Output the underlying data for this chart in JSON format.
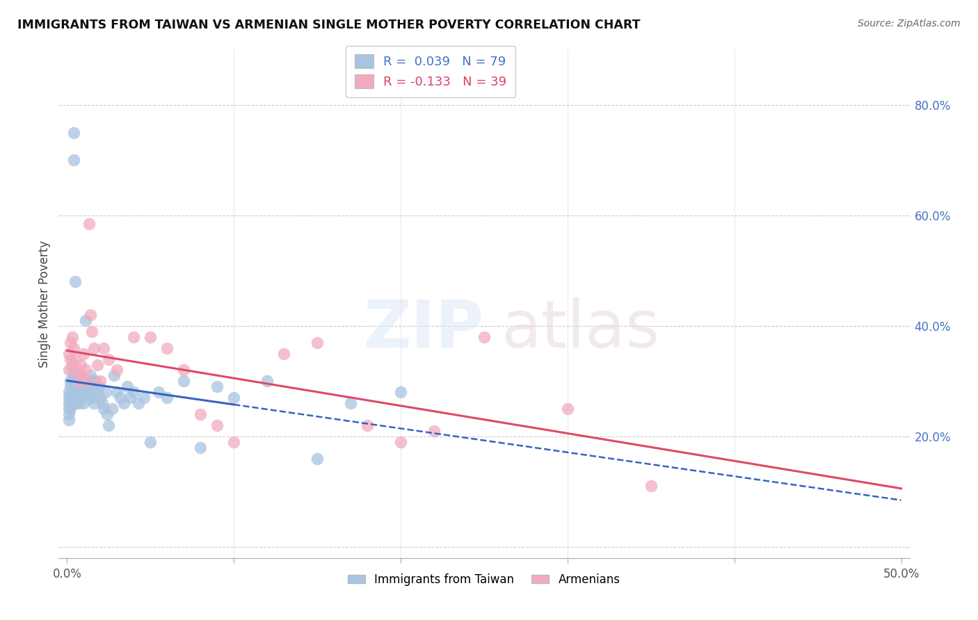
{
  "title": "IMMIGRANTS FROM TAIWAN VS ARMENIAN SINGLE MOTHER POVERTY CORRELATION CHART",
  "source": "Source: ZipAtlas.com",
  "ylabel": "Single Mother Poverty",
  "taiwan_r": 0.039,
  "taiwan_n": 79,
  "armenian_r": -0.133,
  "armenian_n": 39,
  "xlim": [
    0.0,
    0.5
  ],
  "ylim": [
    0.0,
    0.9
  ],
  "taiwan_color": "#a8c4e0",
  "armenian_color": "#f2abbe",
  "taiwan_line_color": "#3565c0",
  "armenian_line_color": "#e04868",
  "grid_color": "#cccccc",
  "right_tick_color": "#4472c4",
  "taiwan_x": [
    0.001,
    0.001,
    0.001,
    0.001,
    0.001,
    0.001,
    0.002,
    0.002,
    0.002,
    0.002,
    0.002,
    0.003,
    0.003,
    0.003,
    0.003,
    0.004,
    0.004,
    0.004,
    0.004,
    0.005,
    0.005,
    0.005,
    0.005,
    0.006,
    0.006,
    0.006,
    0.007,
    0.007,
    0.007,
    0.008,
    0.008,
    0.008,
    0.009,
    0.009,
    0.01,
    0.01,
    0.01,
    0.011,
    0.011,
    0.012,
    0.012,
    0.013,
    0.013,
    0.014,
    0.014,
    0.015,
    0.015,
    0.016,
    0.016,
    0.017,
    0.018,
    0.019,
    0.02,
    0.021,
    0.022,
    0.023,
    0.024,
    0.025,
    0.027,
    0.028,
    0.03,
    0.032,
    0.034,
    0.036,
    0.038,
    0.04,
    0.043,
    0.046,
    0.05,
    0.055,
    0.06,
    0.07,
    0.08,
    0.09,
    0.1,
    0.12,
    0.15,
    0.17,
    0.2
  ],
  "taiwan_y": [
    0.28,
    0.27,
    0.26,
    0.25,
    0.24,
    0.23,
    0.3,
    0.29,
    0.27,
    0.26,
    0.25,
    0.32,
    0.3,
    0.28,
    0.26,
    0.75,
    0.7,
    0.31,
    0.29,
    0.48,
    0.3,
    0.28,
    0.26,
    0.31,
    0.29,
    0.27,
    0.3,
    0.28,
    0.26,
    0.31,
    0.29,
    0.27,
    0.3,
    0.28,
    0.3,
    0.28,
    0.26,
    0.41,
    0.29,
    0.3,
    0.28,
    0.3,
    0.27,
    0.31,
    0.28,
    0.3,
    0.27,
    0.29,
    0.26,
    0.3,
    0.28,
    0.29,
    0.27,
    0.26,
    0.25,
    0.28,
    0.24,
    0.22,
    0.25,
    0.31,
    0.28,
    0.27,
    0.26,
    0.29,
    0.27,
    0.28,
    0.26,
    0.27,
    0.19,
    0.28,
    0.27,
    0.3,
    0.18,
    0.29,
    0.27,
    0.3,
    0.16,
    0.26,
    0.28
  ],
  "armenian_x": [
    0.001,
    0.001,
    0.002,
    0.002,
    0.003,
    0.003,
    0.004,
    0.005,
    0.006,
    0.007,
    0.008,
    0.009,
    0.01,
    0.011,
    0.012,
    0.013,
    0.014,
    0.015,
    0.016,
    0.018,
    0.02,
    0.022,
    0.025,
    0.03,
    0.04,
    0.05,
    0.06,
    0.07,
    0.08,
    0.09,
    0.1,
    0.13,
    0.15,
    0.18,
    0.2,
    0.22,
    0.25,
    0.3,
    0.35
  ],
  "armenian_y": [
    0.35,
    0.32,
    0.37,
    0.34,
    0.38,
    0.33,
    0.36,
    0.34,
    0.32,
    0.3,
    0.33,
    0.31,
    0.35,
    0.32,
    0.3,
    0.585,
    0.42,
    0.39,
    0.36,
    0.33,
    0.3,
    0.36,
    0.34,
    0.32,
    0.38,
    0.38,
    0.36,
    0.32,
    0.24,
    0.22,
    0.19,
    0.35,
    0.37,
    0.22,
    0.19,
    0.21,
    0.38,
    0.25,
    0.11
  ]
}
